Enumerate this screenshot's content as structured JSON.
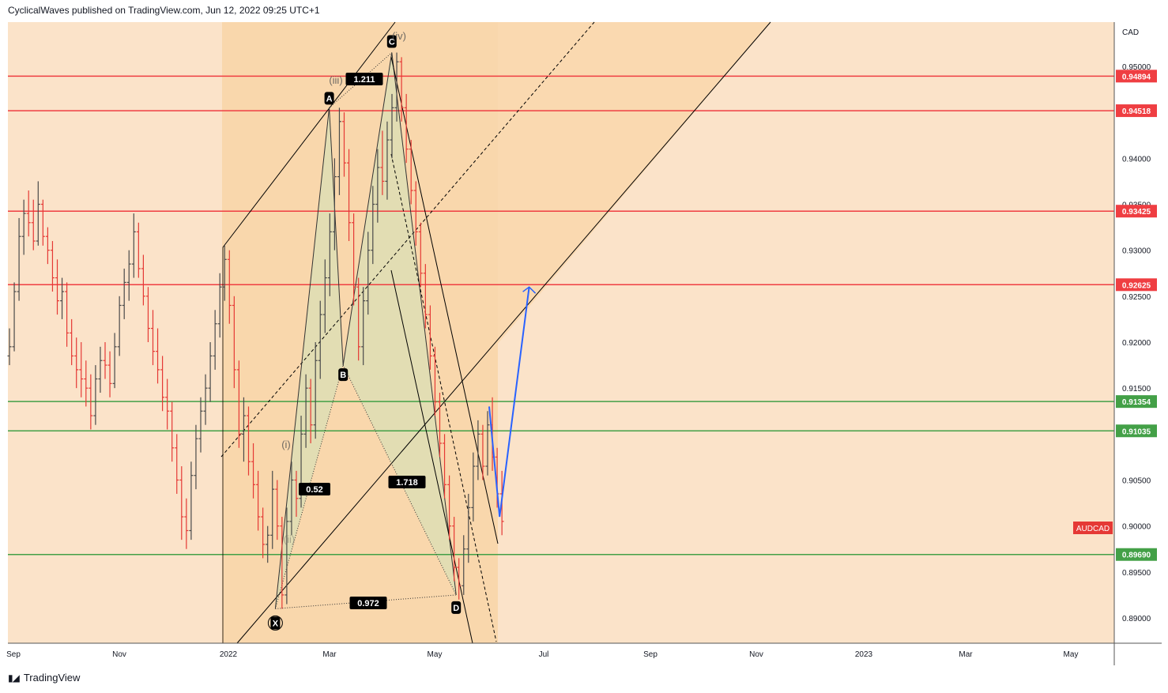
{
  "header": {
    "publisher_line": "CyclicalWaves published on TradingView.com, Jun 12, 2022 09:25 UTC+1"
  },
  "footer": {
    "brand": "TradingView",
    "logo_icon": "tradingview-logo-icon"
  },
  "colors": {
    "background": "#fbe3c9",
    "channel_fill": "#f9d7ac",
    "pattern_fill": "#d9dfb6",
    "bull": "#4a4a4a",
    "bear": "#e53935",
    "resistance": "#ef3e42",
    "support": "#43a047",
    "projection": "#2962ff",
    "label_bg": "#000000"
  },
  "chart_data": {
    "type": "ohlc",
    "symbol": "AUDCAD",
    "currency": "CAD",
    "y_ticks": [
      "0.95000",
      "0.94000",
      "0.93500",
      "0.93000",
      "0.92500",
      "0.92000",
      "0.91500",
      "0.90500",
      "0.90000",
      "0.89500",
      "0.89000"
    ],
    "x_ticks": [
      "Sep",
      "Nov",
      "2022",
      "Mar",
      "May",
      "Jul",
      "Sep",
      "Nov",
      "2023",
      "Mar",
      "May"
    ],
    "horizontal_levels": [
      {
        "value": "0.94894",
        "kind": "resistance"
      },
      {
        "value": "0.94518",
        "kind": "resistance"
      },
      {
        "value": "0.93425",
        "kind": "resistance"
      },
      {
        "value": "0.92625",
        "kind": "resistance"
      },
      {
        "value": "0.91354",
        "kind": "support"
      },
      {
        "value": "0.91035",
        "kind": "support"
      },
      {
        "value": "0.89690",
        "kind": "support"
      }
    ],
    "harmonic_points": [
      {
        "label": "X",
        "date": "2022-01-28",
        "price": 0.891
      },
      {
        "label": "A",
        "date": "2022-02-28",
        "price": 0.9455
      },
      {
        "label": "B",
        "date": "2022-03-08",
        "price": 0.9175
      },
      {
        "label": "C",
        "date": "2022-04-05",
        "price": 0.9515
      },
      {
        "label": "D",
        "date": "2022-05-12",
        "price": 0.8925
      }
    ],
    "ratios": [
      "0.52",
      "1.211",
      "1.718",
      "0.972"
    ],
    "wave_labels": [
      "(i)",
      "(ii)",
      "(iii)",
      "(iv)"
    ],
    "projection": [
      {
        "date": "2022-05-31",
        "price": 0.913
      },
      {
        "date": "2022-06-06",
        "price": 0.901
      },
      {
        "date": "2022-06-23",
        "price": 0.926
      }
    ],
    "candles": [
      [
        0.9185,
        0.9215,
        0.9175,
        0.9195
      ],
      [
        0.9195,
        0.9265,
        0.919,
        0.9255
      ],
      [
        0.9255,
        0.9335,
        0.9245,
        0.9315
      ],
      [
        0.9315,
        0.9355,
        0.9295,
        0.934
      ],
      [
        0.934,
        0.9365,
        0.9315,
        0.933
      ],
      [
        0.933,
        0.9355,
        0.93,
        0.931
      ],
      [
        0.931,
        0.9375,
        0.9305,
        0.935
      ],
      [
        0.935,
        0.9355,
        0.9305,
        0.9315
      ],
      [
        0.9315,
        0.9325,
        0.9285,
        0.93
      ],
      [
        0.93,
        0.931,
        0.9255,
        0.927
      ],
      [
        0.927,
        0.929,
        0.923,
        0.9245
      ],
      [
        0.9245,
        0.927,
        0.9225,
        0.9255
      ],
      [
        0.9255,
        0.9265,
        0.9195,
        0.921
      ],
      [
        0.921,
        0.9225,
        0.9175,
        0.9185
      ],
      [
        0.9185,
        0.9205,
        0.915,
        0.917
      ],
      [
        0.917,
        0.92,
        0.914,
        0.916
      ],
      [
        0.916,
        0.918,
        0.913,
        0.915
      ],
      [
        0.915,
        0.9165,
        0.9105,
        0.912
      ],
      [
        0.912,
        0.9175,
        0.911,
        0.916
      ],
      [
        0.916,
        0.9195,
        0.9145,
        0.918
      ],
      [
        0.918,
        0.92,
        0.916,
        0.9175
      ],
      [
        0.9175,
        0.919,
        0.914,
        0.9155
      ],
      [
        0.9155,
        0.921,
        0.915,
        0.9195
      ],
      [
        0.9195,
        0.925,
        0.9185,
        0.924
      ],
      [
        0.924,
        0.928,
        0.9225,
        0.9265
      ],
      [
        0.9265,
        0.93,
        0.9245,
        0.9285
      ],
      [
        0.9285,
        0.934,
        0.927,
        0.932
      ],
      [
        0.932,
        0.933,
        0.927,
        0.928
      ],
      [
        0.928,
        0.9295,
        0.924,
        0.925
      ],
      [
        0.925,
        0.926,
        0.92,
        0.9215
      ],
      [
        0.9215,
        0.9235,
        0.9175,
        0.919
      ],
      [
        0.919,
        0.9215,
        0.9155,
        0.917
      ],
      [
        0.917,
        0.9185,
        0.9125,
        0.914
      ],
      [
        0.914,
        0.916,
        0.9105,
        0.9125
      ],
      [
        0.9125,
        0.9135,
        0.907,
        0.9085
      ],
      [
        0.9085,
        0.91,
        0.9035,
        0.905
      ],
      [
        0.905,
        0.9065,
        0.8985,
        0.901
      ],
      [
        0.901,
        0.903,
        0.8975,
        0.8995
      ],
      [
        0.8995,
        0.907,
        0.8985,
        0.9055
      ],
      [
        0.9055,
        0.911,
        0.904,
        0.9095
      ],
      [
        0.9095,
        0.914,
        0.908,
        0.9125
      ],
      [
        0.9125,
        0.9165,
        0.911,
        0.915
      ],
      [
        0.915,
        0.92,
        0.9135,
        0.9185
      ],
      [
        0.9185,
        0.9235,
        0.917,
        0.922
      ],
      [
        0.922,
        0.9275,
        0.9205,
        0.926
      ],
      [
        0.926,
        0.9305,
        0.9245,
        0.929
      ],
      [
        0.929,
        0.93,
        0.922,
        0.924
      ],
      [
        0.924,
        0.925,
        0.915,
        0.917
      ],
      [
        0.917,
        0.918,
        0.9085,
        0.91
      ],
      [
        0.91,
        0.914,
        0.907,
        0.912
      ],
      [
        0.912,
        0.913,
        0.9055,
        0.907
      ],
      [
        0.907,
        0.909,
        0.903,
        0.9045
      ],
      [
        0.9045,
        0.906,
        0.8995,
        0.901
      ],
      [
        0.901,
        0.902,
        0.8965,
        0.898
      ],
      [
        0.898,
        0.9,
        0.896,
        0.899
      ],
      [
        0.899,
        0.906,
        0.8975,
        0.904
      ],
      [
        0.904,
        0.905,
        0.8985,
        0.9
      ],
      [
        0.9,
        0.901,
        0.891,
        0.8925
      ],
      [
        0.8925,
        0.902,
        0.8915,
        0.9005
      ],
      [
        0.9005,
        0.907,
        0.899,
        0.905
      ],
      [
        0.905,
        0.906,
        0.901,
        0.903
      ],
      [
        0.903,
        0.912,
        0.902,
        0.91
      ],
      [
        0.91,
        0.9165,
        0.9085,
        0.915
      ],
      [
        0.915,
        0.916,
        0.909,
        0.911
      ],
      [
        0.911,
        0.92,
        0.9095,
        0.918
      ],
      [
        0.918,
        0.9245,
        0.916,
        0.923
      ],
      [
        0.923,
        0.929,
        0.921,
        0.927
      ],
      [
        0.927,
        0.934,
        0.925,
        0.932
      ],
      [
        0.932,
        0.94,
        0.93,
        0.938
      ],
      [
        0.938,
        0.9455,
        0.936,
        0.944
      ],
      [
        0.944,
        0.945,
        0.938,
        0.9395
      ],
      [
        0.9395,
        0.941,
        0.931,
        0.933
      ],
      [
        0.933,
        0.934,
        0.924,
        0.926
      ],
      [
        0.926,
        0.927,
        0.918,
        0.9195
      ],
      [
        0.9195,
        0.926,
        0.9175,
        0.9245
      ],
      [
        0.9245,
        0.932,
        0.923,
        0.93
      ],
      [
        0.93,
        0.937,
        0.9285,
        0.935
      ],
      [
        0.935,
        0.941,
        0.933,
        0.939
      ],
      [
        0.939,
        0.943,
        0.936,
        0.9375
      ],
      [
        0.9375,
        0.944,
        0.9355,
        0.942
      ],
      [
        0.942,
        0.947,
        0.94,
        0.9455
      ],
      [
        0.9455,
        0.9515,
        0.944,
        0.9505
      ],
      [
        0.9505,
        0.951,
        0.944,
        0.9455
      ],
      [
        0.9455,
        0.947,
        0.9395,
        0.941
      ],
      [
        0.941,
        0.942,
        0.935,
        0.9365
      ],
      [
        0.9365,
        0.9375,
        0.9305,
        0.932
      ],
      [
        0.932,
        0.933,
        0.926,
        0.9275
      ],
      [
        0.9275,
        0.9285,
        0.9215,
        0.923
      ],
      [
        0.923,
        0.924,
        0.917,
        0.9185
      ],
      [
        0.9185,
        0.9195,
        0.912,
        0.9135
      ],
      [
        0.9135,
        0.9145,
        0.9075,
        0.909
      ],
      [
        0.909,
        0.91,
        0.903,
        0.9045
      ],
      [
        0.9045,
        0.9055,
        0.8985,
        0.9
      ],
      [
        0.9,
        0.901,
        0.894,
        0.8955
      ],
      [
        0.8955,
        0.8965,
        0.892,
        0.8935
      ],
      [
        0.8935,
        0.899,
        0.8925,
        0.8975
      ],
      [
        0.8975,
        0.9035,
        0.896,
        0.902
      ],
      [
        0.902,
        0.908,
        0.9005,
        0.9065
      ],
      [
        0.9065,
        0.9115,
        0.905,
        0.91
      ],
      [
        0.91,
        0.911,
        0.905,
        0.9065
      ],
      [
        0.9065,
        0.9125,
        0.9055,
        0.911
      ],
      [
        0.911,
        0.914,
        0.906,
        0.9075
      ],
      [
        0.9075,
        0.9085,
        0.902,
        0.9035
      ],
      [
        0.9035,
        0.906,
        0.899,
        0.9005
      ]
    ]
  }
}
